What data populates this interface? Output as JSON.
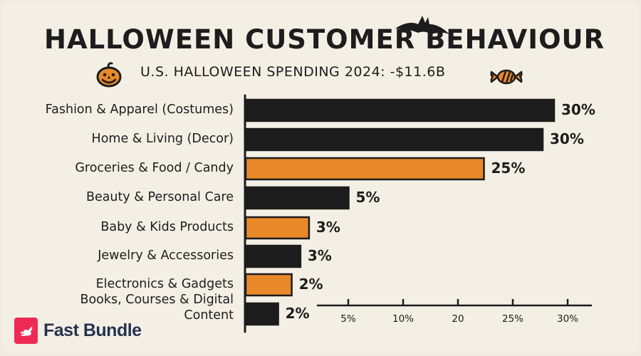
{
  "chart_data": {
    "type": "bar",
    "orientation": "horizontal",
    "title": "HALLOWEEN CUSTOMER BEHAVIOUR",
    "subtitle": "U.S. HALLOWEEN SPENDING 2024: -$11.6B",
    "categories": [
      "Fashion & Apparel (Costumes)",
      "Home & Living (Decor)",
      "Groceries & Food / Candy",
      "Beauty & Personal Care",
      "Baby & Kids Products",
      "Jewelry & Accessories",
      "Electronics & Gadgets",
      "Books, Courses & Digital Content"
    ],
    "values": [
      30,
      30,
      25,
      5,
      3,
      3,
      2,
      2
    ],
    "value_labels": [
      "30%",
      "30%",
      "25%",
      "5%",
      "3%",
      "3%",
      "2%",
      "2%"
    ],
    "bar_colors": [
      "#1c1c1c",
      "#1c1c1c",
      "#e8892a",
      "#1c1c1c",
      "#e8892a",
      "#1c1c1c",
      "#e8892a",
      "#1c1c1c"
    ],
    "x_ticks": [
      "5%",
      "10%",
      "20",
      "25%",
      "30%"
    ],
    "xlabel": "",
    "ylabel": "",
    "xlim": [
      0,
      30
    ],
    "grid": false,
    "legend": "none"
  },
  "colors": {
    "background": "#f4efe4",
    "ink": "#1c1c1c",
    "orange": "#e8892a",
    "brand_red": "#ee2a54",
    "brand_navy": "#26324f"
  },
  "decorations": [
    "pumpkin-icon",
    "bat-icon",
    "candy-icon"
  ],
  "brand": {
    "name": "Fast Bundle"
  }
}
